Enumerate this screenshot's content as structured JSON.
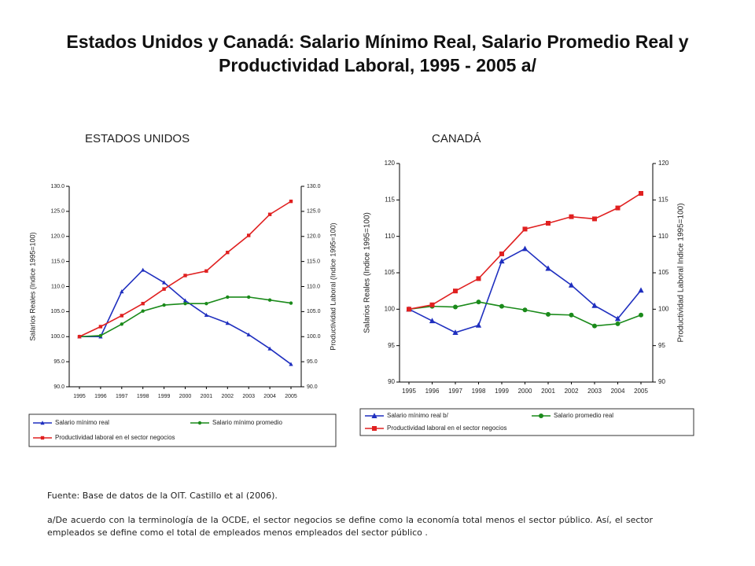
{
  "title": "Estados Unidos y Canadá: Salario Mínimo Real, Salario Promedio Real y Productividad Laboral, 1995 - 2005 a/",
  "source": "Fuente: Base de datos de la OIT. Castillo et al (2006).",
  "note": "a/De acuerdo con la terminología de la OCDE, el sector negocios se define como la economía total menos el sector público. Así, el sector empleados se define como el total de empleados menos empleados del sector público .",
  "chart_data": [
    {
      "type": "line",
      "title": "ESTADOS UNIDOS",
      "y_label": "Salarios Reales (Indice 1995=100)",
      "y2_label": "Productividad Laboral (Indice 1995=100)",
      "categories": [
        "1995",
        "1996",
        "1997",
        "1998",
        "1999",
        "2000",
        "2001",
        "2002",
        "2003",
        "2004",
        "2005"
      ],
      "ylim": [
        90,
        130
      ],
      "yticks": [
        {
          "value": 90,
          "label": "90.0"
        },
        {
          "value": 95,
          "label": "95.0"
        },
        {
          "value": 100,
          "label": "100.0"
        },
        {
          "value": 105,
          "label": "105.0"
        },
        {
          "value": 110,
          "label": "110.0"
        },
        {
          "value": 115,
          "label": "115.0"
        },
        {
          "value": 120,
          "label": "120.0"
        },
        {
          "value": 125,
          "label": "125.0"
        },
        {
          "value": 130,
          "label": "130.0"
        }
      ],
      "y2lim": [
        90,
        130
      ],
      "y2ticks": [
        {
          "value": 90,
          "label": "90.0"
        },
        {
          "value": 95,
          "label": "95.0"
        },
        {
          "value": 100,
          "label": "100.0"
        },
        {
          "value": 105,
          "label": "105.0"
        },
        {
          "value": 110,
          "label": "110.0"
        },
        {
          "value": 115,
          "label": "115.0"
        },
        {
          "value": 120,
          "label": "120.0"
        },
        {
          "value": 125,
          "label": "125.0"
        },
        {
          "value": 130,
          "label": "130.0"
        }
      ],
      "series": [
        {
          "name": "Salario mínimo real",
          "color": "#1f2fbf",
          "marker": "triangle",
          "values": [
            100,
            100,
            109,
            113.3,
            110.8,
            107.2,
            104.3,
            102.7,
            100.4,
            97.6,
            94.5
          ]
        },
        {
          "name": "Salario mínimo promedio",
          "color": "#1a8a1a",
          "marker": "circle",
          "values": [
            100,
            100.2,
            102.5,
            105.1,
            106.3,
            106.6,
            106.6,
            107.9,
            107.9,
            107.3,
            106.7
          ]
        },
        {
          "name": "Productividad laboral en el sector negocios",
          "color": "#e02020",
          "marker": "square",
          "axis": "y2",
          "values": [
            100,
            102,
            104.2,
            106.6,
            109.5,
            112.2,
            113.1,
            116.8,
            120.2,
            124.4,
            127
          ]
        }
      ]
    },
    {
      "type": "line",
      "title": "CANADÁ",
      "y_label": "Salarios Reales (Indice 1995=100)",
      "y2_label": "Productividad Laboral Indice 1995=100)",
      "categories": [
        "1995",
        "1996",
        "1997",
        "1998",
        "1999",
        "2000",
        "2001",
        "2002",
        "2003",
        "2004",
        "2005"
      ],
      "ylim": [
        90,
        120
      ],
      "yticks": [
        90,
        95,
        100,
        105,
        110,
        115,
        120
      ],
      "y2lim": [
        90,
        120
      ],
      "y2ticks": [
        90,
        95,
        100,
        105,
        110,
        115,
        120
      ],
      "series": [
        {
          "name": "Salario mínimo real b/",
          "color": "#1f2fbf",
          "marker": "triangle",
          "values": [
            100,
            98.4,
            96.8,
            97.8,
            106.6,
            108.3,
            105.6,
            103.3,
            100.5,
            98.7,
            102.6
          ]
        },
        {
          "name": "Salario promedio real",
          "color": "#1a8a1a",
          "marker": "circle",
          "values": [
            100,
            100.4,
            100.3,
            101,
            100.4,
            99.9,
            99.3,
            99.2,
            97.7,
            98,
            99.2
          ]
        },
        {
          "name": "Productividad laboral en el sector negocios",
          "color": "#e02020",
          "marker": "square",
          "axis": "y2",
          "values": [
            100,
            100.6,
            102.5,
            104.2,
            107.6,
            111,
            111.8,
            112.7,
            112.4,
            113.9,
            115.9
          ]
        }
      ]
    }
  ]
}
